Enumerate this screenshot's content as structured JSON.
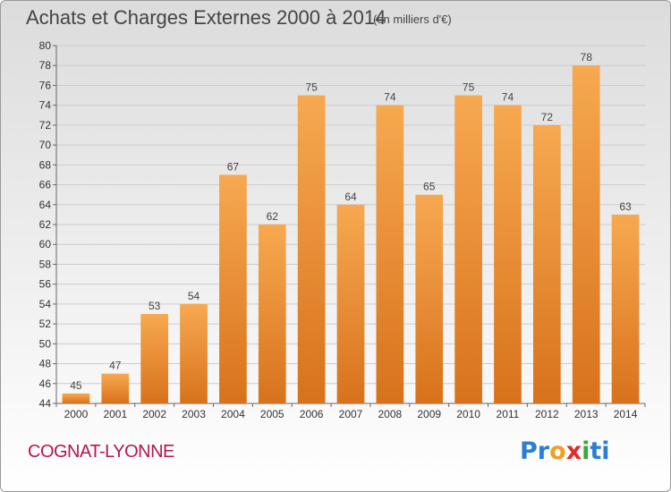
{
  "header": {
    "title": "Achats et Charges Externes 2000 à 2014",
    "unit": "(en milliers d'€)"
  },
  "footer": {
    "commune": "COGNAT-LYONNE",
    "logo_letters": [
      "P",
      "r",
      "o",
      "x",
      "i",
      "t",
      "i"
    ],
    "logo_colors": [
      "#2a7fd4",
      "#2a7fd4",
      "#f0a020",
      "#e02b2b",
      "#3aa83a",
      "#2a7fd4",
      "#2a7fd4"
    ]
  },
  "chart_data": {
    "type": "bar",
    "title": "Achats et Charges Externes 2000 à 2014",
    "categories": [
      "2000",
      "2001",
      "2002",
      "2003",
      "2004",
      "2005",
      "2006",
      "2007",
      "2008",
      "2009",
      "2010",
      "2011",
      "2012",
      "2013",
      "2014"
    ],
    "values": [
      45,
      47,
      53,
      54,
      67,
      62,
      75,
      64,
      74,
      65,
      75,
      74,
      72,
      78,
      63
    ],
    "ylim": [
      44,
      80
    ],
    "yticks": [
      44,
      46,
      48,
      50,
      52,
      54,
      56,
      58,
      60,
      62,
      64,
      66,
      68,
      70,
      72,
      74,
      76,
      78,
      80
    ],
    "grid": true,
    "bar_color": "#f08c28"
  }
}
